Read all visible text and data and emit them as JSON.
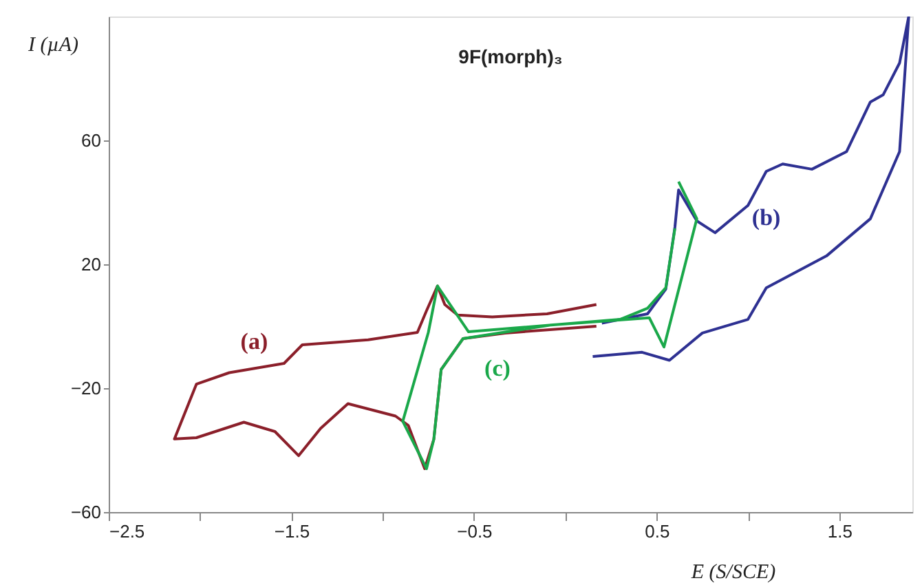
{
  "chart_data": {
    "type": "line",
    "title": "9F(morph)₃",
    "xlabel": "E (S/SCE)",
    "ylabel": "I (µA)",
    "xlim": [
      -2.5,
      1.9
    ],
    "ylim": [
      -60,
      100
    ],
    "xticks": [
      -2.5,
      {
        "value": -2,
        "label": null
      },
      -1.5,
      {
        "value": -1,
        "label": null
      },
      -0.5,
      {
        "value": 0,
        "label": null
      },
      0.5,
      {
        "value": 1,
        "label": null
      },
      1.5
    ],
    "yticks": [
      -60,
      -20,
      20,
      60
    ],
    "grid": false,
    "marker": "none",
    "line_style": "solid",
    "series": [
      {
        "name": "(a)",
        "color": "#8b1f2a",
        "x": [
          0.17,
          -0.1,
          -0.4,
          -0.59,
          -0.66,
          -0.7,
          -0.76,
          -0.81,
          -1.08,
          -1.44,
          -1.54,
          -1.84,
          -2.02,
          -2.14,
          -2.02,
          -1.76,
          -1.59,
          -1.46,
          -1.34,
          -1.19,
          -0.93,
          -0.86,
          -0.77,
          -0.72,
          -0.68,
          -0.56,
          -0.33,
          0.17
        ],
        "values": [
          7,
          4,
          3,
          3.6,
          7,
          13,
          5,
          -2,
          -4.4,
          -6,
          -12,
          -15,
          -18.7,
          -36.4,
          -36,
          -31,
          -34,
          -41.8,
          -33,
          -25,
          -29,
          -32,
          -46,
          -36.5,
          -14,
          -4,
          -2.2,
          0
        ]
      },
      {
        "name": "(b)",
        "color": "#2e3192",
        "x": [
          0.2,
          0.45,
          0.55,
          0.6,
          0.62,
          0.72,
          0.82,
          1.0,
          1.1,
          1.19,
          1.35,
          1.54,
          1.67,
          1.74,
          1.83,
          1.88,
          1.83,
          1.67,
          1.43,
          1.1,
          1.0,
          0.75,
          0.57,
          0.42,
          0.15
        ],
        "values": [
          1,
          4,
          12,
          32,
          44,
          34,
          30.2,
          39,
          50,
          52.4,
          50.7,
          56.4,
          72.4,
          74.7,
          85,
          100,
          56.4,
          34.7,
          22.7,
          12.4,
          2.2,
          -2.2,
          -11,
          -8.4,
          -9.8
        ]
      },
      {
        "name": "(c)",
        "color": "#1aa84a",
        "x": [
          0.62,
          0.72,
          0.54,
          0.46,
          -0.08,
          -0.56,
          -0.68,
          -0.72,
          -0.76,
          -0.89,
          -0.75,
          -0.7,
          -0.53,
          0.3,
          0.45,
          0.55,
          0.6
        ],
        "values": [
          46.7,
          34.7,
          -6.7,
          2.7,
          0.4,
          -4,
          -14,
          -36.5,
          -46,
          -30.7,
          -2,
          13,
          -1.8,
          2.2,
          5.8,
          12.4,
          31.6
        ]
      }
    ]
  }
}
